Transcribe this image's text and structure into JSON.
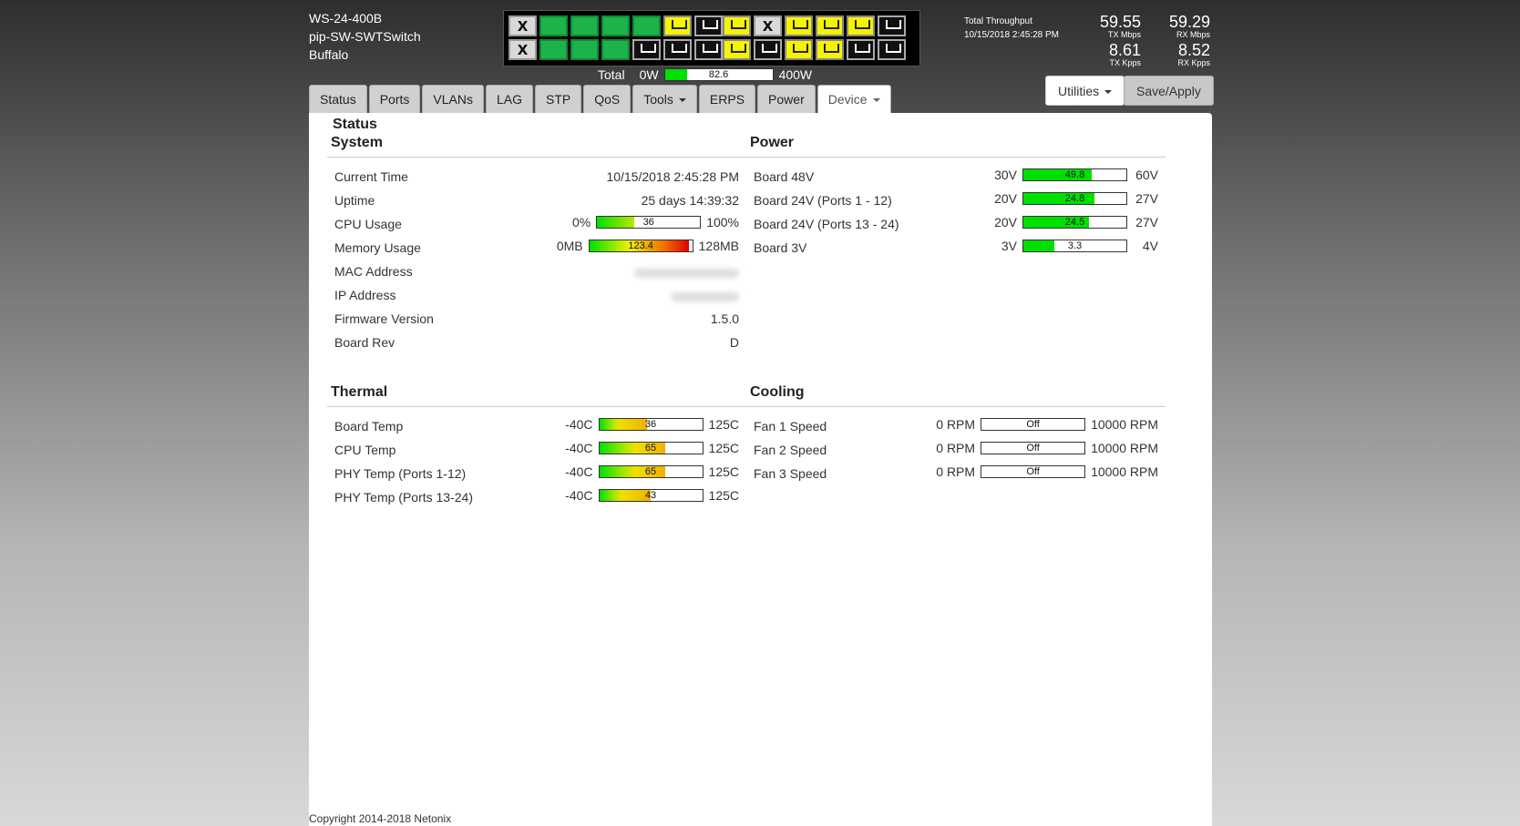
{
  "device": {
    "model": "WS-24-400B",
    "hostname": "pip-SW-SWTSwitch",
    "location": "Buffalo"
  },
  "switch_panel": {
    "group1": {
      "top": [
        "x",
        "green",
        "green",
        "green",
        "green",
        "yellow",
        "black"
      ],
      "bottom": [
        "x",
        "green",
        "green",
        "green",
        "black",
        "black",
        "black"
      ],
      "x_label": "X"
    },
    "group2": {
      "top": [
        "yellow",
        "x",
        "yellow",
        "yellow",
        "yellow",
        "black"
      ],
      "bottom": [
        "yellow",
        "black",
        "yellow",
        "yellow",
        "black",
        "black"
      ],
      "x_label": "X"
    }
  },
  "power_total": {
    "label": "Total",
    "min": "0W",
    "max": "400W",
    "value": "82.6",
    "fraction": 0.206
  },
  "throughput": {
    "label": "Total Throughput",
    "timestamp": "10/15/2018 2:45:28 PM",
    "tx_mbps": "59.55",
    "tx_mbps_unit": "TX Mbps",
    "rx_mbps": "59.29",
    "rx_mbps_unit": "RX Mbps",
    "tx_kpps": "8.61",
    "tx_kpps_unit": "TX Kpps",
    "rx_kpps": "8.52",
    "rx_kpps_unit": "RX Kpps"
  },
  "nav": {
    "tabs": [
      "Status",
      "Ports",
      "VLANs",
      "LAG",
      "STP",
      "QoS",
      "Tools",
      "ERPS",
      "Power",
      "Device"
    ],
    "active": "Device",
    "utilities_label": "Utilities",
    "save_label": "Save/Apply"
  },
  "page": {
    "heading": "Status",
    "copyright": "Copyright 2014-2018 Netonix"
  },
  "system": {
    "title": "System",
    "current_time_label": "Current Time",
    "current_time": "10/15/2018 2:45:28 PM",
    "uptime_label": "Uptime",
    "uptime": "25 days 14:39:32",
    "cpu_label": "CPU Usage",
    "cpu_min": "0%",
    "cpu_max": "100%",
    "cpu_value": "36",
    "cpu_fraction": 0.36,
    "mem_label": "Memory Usage",
    "mem_min": "0MB",
    "mem_max": "128MB",
    "mem_value": "123.4",
    "mem_fraction": 0.964,
    "mac_label": "MAC Address",
    "ip_label": "IP Address",
    "firmware_label": "Firmware Version",
    "firmware": "1.5.0",
    "board_rev_label": "Board Rev",
    "board_rev": "D"
  },
  "power": {
    "title": "Power",
    "rows": [
      {
        "label": "Board 48V",
        "min": "30V",
        "max": "60V",
        "value": "49.8",
        "fraction": 0.66
      },
      {
        "label": "Board 24V (Ports 1 - 12)",
        "min": "20V",
        "max": "27V",
        "value": "24.8",
        "fraction": 0.69
      },
      {
        "label": "Board 24V (Ports 13 - 24)",
        "min": "20V",
        "max": "27V",
        "value": "24.5",
        "fraction": 0.64
      },
      {
        "label": "Board 3V",
        "min": "3V",
        "max": "4V",
        "value": "3.3",
        "fraction": 0.3
      }
    ]
  },
  "thermal": {
    "title": "Thermal",
    "rows": [
      {
        "label": "Board Temp",
        "min": "-40C",
        "max": "125C",
        "value": "36",
        "fraction": 0.46
      },
      {
        "label": "CPU Temp",
        "min": "-40C",
        "max": "125C",
        "value": "65",
        "fraction": 0.64
      },
      {
        "label": "PHY Temp (Ports 1-12)",
        "min": "-40C",
        "max": "125C",
        "value": "65",
        "fraction": 0.64
      },
      {
        "label": "PHY Temp (Ports 13-24)",
        "min": "-40C",
        "max": "125C",
        "value": "43",
        "fraction": 0.5
      }
    ]
  },
  "cooling": {
    "title": "Cooling",
    "rows": [
      {
        "label": "Fan 1 Speed",
        "min": "0 RPM",
        "max": "10000 RPM",
        "value": "Off",
        "fraction": 0
      },
      {
        "label": "Fan 2 Speed",
        "min": "0 RPM",
        "max": "10000 RPM",
        "value": "Off",
        "fraction": 0
      },
      {
        "label": "Fan 3 Speed",
        "min": "0 RPM",
        "max": "10000 RPM",
        "value": "Off",
        "fraction": 0
      }
    ]
  },
  "colors": {
    "ok_green": "#00e000",
    "warn_yellow": "#f0f000",
    "alert_red": "#e00000",
    "port_green": "#1db24a",
    "port_yellow": "#f5f300"
  }
}
